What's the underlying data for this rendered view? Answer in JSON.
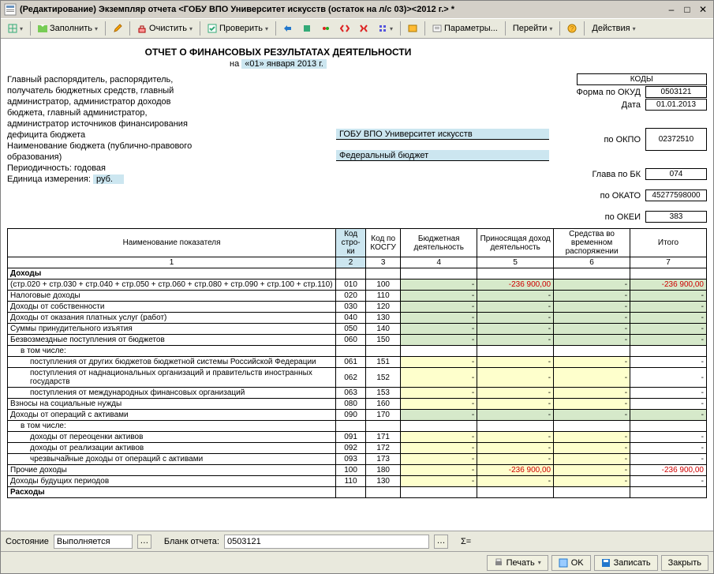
{
  "window": {
    "title": "(Редактирование) Экземпляр отчета <ГОБУ ВПО Университет искусств (остаток на л/с 03)><2012 г.> *"
  },
  "toolbar": {
    "fill": "Заполнить",
    "clear": "Очистить",
    "check": "Проверить",
    "params": "Параметры...",
    "goto": "Перейти",
    "actions": "Действия"
  },
  "report": {
    "title": "ОТЧЕТ О ФИНАНСОВЫХ РЕЗУЛЬТАТАХ ДЕЯТЕЛЬНОСТИ",
    "date_prefix": "на ",
    "date_val": "«01» января 2013 г.",
    "left_labels": {
      "l1": "Главный распорядитель, распорядитель,",
      "l2": "получатель бюджетных средств, главный",
      "l3": "администратор, администратор доходов",
      "l4": "бюджета, главный администратор,",
      "l5": "администратор источников финансирования",
      "l6": "дефицита бюджета",
      "l7": "Наименование бюджета (публично-правового",
      "l8": "образования)",
      "l9": "Периодичность: годовая",
      "l10_a": "Единица измерения:",
      "l10_b": "руб."
    },
    "mid": {
      "org": "ГОБУ ВПО Университет искусств",
      "budget": "Федеральный бюджет"
    },
    "codes_head": "КОДЫ",
    "codes": {
      "forma": {
        "k": "Форма по ОКУД",
        "v": "0503121"
      },
      "data": {
        "k": "Дата",
        "v": "01.01.2013"
      },
      "okpo": {
        "k": "по ОКПО",
        "v": "02372510"
      },
      "glava": {
        "k": "Глава по БК",
        "v": "074"
      },
      "okato": {
        "k": "по ОКАТО",
        "v": "45277598000"
      },
      "okei": {
        "k": "по ОКЕИ",
        "v": "383"
      }
    }
  },
  "columns": {
    "c1": "Наименование показателя",
    "c2": "Код стро-ки",
    "c3": "Код по КОСГУ",
    "c4": "Бюджетная деятельность",
    "c5": "Приносящая доход деятельность",
    "c6": "Средства во временном распоряжении",
    "c7": "Итого",
    "n1": "1",
    "n2": "2",
    "n3": "3",
    "n4": "4",
    "n5": "5",
    "n6": "6",
    "n7": "7"
  },
  "rows": {
    "r0": {
      "name": "Доходы",
      "bold": true,
      "code": "",
      "kosgu": "",
      "c4": "",
      "c5": "",
      "c6": "",
      "c7": ""
    },
    "r0b": {
      "name": "(стр.020 + стр.030 + стр.040 + стр.050 + стр.060 + стр.080 + стр.090 + стр.100 + стр.110)",
      "code": "010",
      "kosgu": "100",
      "c4": "-",
      "c5": "-236 900,00",
      "c6": "-",
      "c7": "-236 900,00",
      "green": true,
      "neg": true
    },
    "r1": {
      "name": "Налоговые доходы",
      "code": "020",
      "kosgu": "110",
      "c4": "-",
      "c5": "-",
      "c6": "-",
      "c7": "-",
      "green": true
    },
    "r2": {
      "name": "Доходы от собственности",
      "code": "030",
      "kosgu": "120",
      "c4": "-",
      "c5": "-",
      "c6": "-",
      "c7": "-",
      "green": true
    },
    "r3": {
      "name": "Доходы от оказания платных услуг (работ)",
      "code": "040",
      "kosgu": "130",
      "c4": "-",
      "c5": "-",
      "c6": "-",
      "c7": "-",
      "green": true
    },
    "r4": {
      "name": "Суммы принудительного изъятия",
      "code": "050",
      "kosgu": "140",
      "c4": "-",
      "c5": "-",
      "c6": "-",
      "c7": "-",
      "green": true
    },
    "r5": {
      "name": "Безвозмездные поступления от бюджетов",
      "code": "060",
      "kosgu": "150",
      "c4": "-",
      "c5": "-",
      "c6": "-",
      "c7": "-",
      "green": true
    },
    "r6": {
      "name": "в том числе:",
      "indent": 1,
      "code": "",
      "kosgu": "",
      "c4": "",
      "c5": "",
      "c6": "",
      "c7": ""
    },
    "r7": {
      "name": "поступления от других бюджетов бюджетной системы Российской Федерации",
      "indent": 2,
      "code": "061",
      "kosgu": "151",
      "c4": "-",
      "c5": "-",
      "c6": "-",
      "c7": "-",
      "yellow": true
    },
    "r8": {
      "name": "поступления от наднациональных организаций и правительств иностранных государств",
      "indent": 2,
      "code": "062",
      "kosgu": "152",
      "c4": "-",
      "c5": "-",
      "c6": "-",
      "c7": "-",
      "yellow": true
    },
    "r9": {
      "name": "поступления от международных финансовых организаций",
      "indent": 2,
      "code": "063",
      "kosgu": "153",
      "c4": "-",
      "c5": "-",
      "c6": "-",
      "c7": "-",
      "yellow": true
    },
    "r10": {
      "name": "Взносы на социальные нужды",
      "code": "080",
      "kosgu": "160",
      "c4": "-",
      "c5": "-",
      "c6": "-",
      "c7": "-",
      "yellow": true
    },
    "r11": {
      "name": "Доходы от операций с активами",
      "code": "090",
      "kosgu": "170",
      "c4": "-",
      "c5": "-",
      "c6": "-",
      "c7": "-",
      "green": true
    },
    "r12": {
      "name": "в том числе:",
      "indent": 1,
      "code": "",
      "kosgu": "",
      "c4": "",
      "c5": "",
      "c6": "",
      "c7": ""
    },
    "r13": {
      "name": "доходы от переоценки активов",
      "indent": 2,
      "code": "091",
      "kosgu": "171",
      "c4": "-",
      "c5": "-",
      "c6": "-",
      "c7": "-",
      "yellow": true
    },
    "r14": {
      "name": "доходы от реализации активов",
      "indent": 2,
      "code": "092",
      "kosgu": "172",
      "c4": "-",
      "c5": "-",
      "c6": "-",
      "c7": "-",
      "yellow": true
    },
    "r15": {
      "name": "чрезвычайные доходы от операций с активами",
      "indent": 2,
      "code": "093",
      "kosgu": "173",
      "c4": "-",
      "c5": "-",
      "c6": "-",
      "c7": "-",
      "yellow": true
    },
    "r16": {
      "name": "Прочие доходы",
      "code": "100",
      "kosgu": "180",
      "c4": "-",
      "c5": "-236 900,00",
      "c6": "-",
      "c7": "-236 900,00",
      "yellow": true,
      "neg": true
    },
    "r17": {
      "name": "Доходы будущих периодов",
      "code": "110",
      "kosgu": "130",
      "c4": "-",
      "c5": "-",
      "c6": "-",
      "c7": "-",
      "yellow": true
    },
    "r18": {
      "name": "Расходы",
      "bold": true,
      "code": "",
      "kosgu": "",
      "c4": "",
      "c5": "",
      "c6": "",
      "c7": ""
    }
  },
  "status": {
    "state_lbl": "Состояние",
    "state_val": "Выполняется",
    "blank_lbl": "Бланк отчета:",
    "blank_val": "0503121",
    "sigma": "Σ="
  },
  "footer": {
    "print": "Печать",
    "ok": "OK",
    "save": "Записать",
    "close": "Закрыть"
  },
  "colors": {
    "highlight": "#cce6f0",
    "green": "#d6e9ca",
    "yellow": "#feffcc",
    "neg": "#d00000"
  }
}
